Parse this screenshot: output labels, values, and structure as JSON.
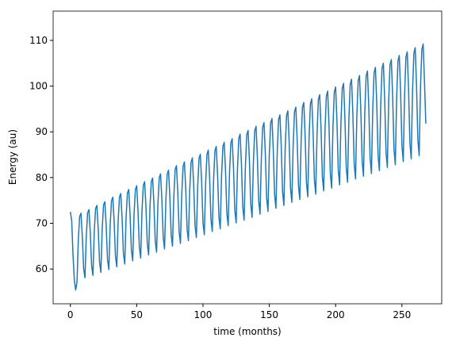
{
  "chart_data": {
    "type": "line",
    "x_label": "time (months)",
    "y_label": "Energy (au)",
    "xlim": [
      -13,
      280
    ],
    "ylim": [
      52.4,
      116.4
    ],
    "xticks": [
      0,
      50,
      100,
      150,
      200,
      250
    ],
    "yticks": [
      60,
      70,
      80,
      90,
      100,
      110
    ],
    "x": [
      0,
      1,
      2,
      3,
      4,
      5,
      6,
      7,
      8,
      9,
      10,
      11,
      12,
      13,
      14,
      15,
      16,
      17,
      18,
      19,
      20,
      21,
      22,
      23,
      24,
      25,
      26,
      27,
      28,
      29,
      30,
      31,
      32,
      33,
      34,
      35,
      36,
      37,
      38,
      39,
      40,
      41,
      42,
      43,
      44,
      45,
      46,
      47,
      48,
      49,
      50,
      51,
      52,
      53,
      54,
      55,
      56,
      57,
      58,
      59,
      60,
      61,
      62,
      63,
      64,
      65,
      66,
      67,
      68,
      69,
      70,
      71,
      72,
      73,
      74,
      75,
      76,
      77,
      78,
      79,
      80,
      81,
      82,
      83,
      84,
      85,
      86,
      87,
      88,
      89,
      90,
      91,
      92,
      93,
      94,
      95,
      96,
      97,
      98,
      99,
      100,
      101,
      102,
      103,
      104,
      105,
      106,
      107,
      108,
      109,
      110,
      111,
      112,
      113,
      114,
      115,
      116,
      117,
      118,
      119,
      120,
      121,
      122,
      123,
      124,
      125,
      126,
      127,
      128,
      129,
      130,
      131,
      132,
      133,
      134,
      135,
      136,
      137,
      138,
      139,
      140,
      141,
      142,
      143,
      144,
      145,
      146,
      147,
      148,
      149,
      150,
      151,
      152,
      153,
      154,
      155,
      156,
      157,
      158,
      159,
      160,
      161,
      162,
      163,
      164,
      165,
      166,
      167,
      168,
      169,
      170,
      171,
      172,
      173,
      174,
      175,
      176,
      177,
      178,
      179,
      180,
      181,
      182,
      183,
      184,
      185,
      186,
      187,
      188,
      189,
      190,
      191,
      192,
      193,
      194,
      195,
      196,
      197,
      198,
      199,
      200,
      201,
      202,
      203,
      204,
      205,
      206,
      207,
      208,
      209,
      210,
      211,
      212,
      213,
      214,
      215,
      216,
      217,
      218,
      219,
      220,
      221,
      222,
      223,
      224,
      225,
      226,
      227,
      228,
      229,
      230,
      231,
      232,
      233,
      234,
      235,
      236,
      237,
      238,
      239,
      240,
      241,
      242,
      243,
      244,
      245,
      246,
      247,
      248,
      249,
      250,
      251,
      252,
      253,
      254,
      255,
      256,
      257,
      258,
      259,
      260,
      261,
      262,
      263,
      264,
      265,
      266,
      267,
      268
    ],
    "series": [
      {
        "color": "#1f77b4",
        "values": [
          72.5,
          70.6,
          63.0,
          57.5,
          55.4,
          57.2,
          66.5,
          71.5,
          72.2,
          67.2,
          60.1,
          58.1,
          67.2,
          72.3,
          73.0,
          68.0,
          60.8,
          58.6,
          68.1,
          73.2,
          73.9,
          68.8,
          61.5,
          59.3,
          68.8,
          74.0,
          74.7,
          69.5,
          62.1,
          59.9,
          69.6,
          74.9,
          75.7,
          70.4,
          62.8,
          60.5,
          70.3,
          75.7,
          76.5,
          71.1,
          63.4,
          61.1,
          71.2,
          76.6,
          77.4,
          71.9,
          64.1,
          61.8,
          71.9,
          77.4,
          78.2,
          72.7,
          64.8,
          62.4,
          72.7,
          78.3,
          79.1,
          73.5,
          65.5,
          63.1,
          73.4,
          79.1,
          79.9,
          74.2,
          66.1,
          63.7,
          74.2,
          80.0,
          80.8,
          75.1,
          66.9,
          64.4,
          75.0,
          80.8,
          81.6,
          75.8,
          67.5,
          65.0,
          75.8,
          81.8,
          82.6,
          76.7,
          68.1,
          65.6,
          76.5,
          82.5,
          83.4,
          77.4,
          68.8,
          66.2,
          77.3,
          83.4,
          84.3,
          78.2,
          69.5,
          66.9,
          78.1,
          84.2,
          85.1,
          78.9,
          70.1,
          67.5,
          78.9,
          85.1,
          86.0,
          79.8,
          70.9,
          68.2,
          79.6,
          85.9,
          86.8,
          80.5,
          71.5,
          68.8,
          80.4,
          86.8,
          87.7,
          81.3,
          72.2,
          69.5,
          81.1,
          87.6,
          88.5,
          82.1,
          72.9,
          70.1,
          82.0,
          88.6,
          89.5,
          82.9,
          73.5,
          70.7,
          82.7,
          89.4,
          90.3,
          83.7,
          74.2,
          71.3,
          83.5,
          90.2,
          91.2,
          84.5,
          74.9,
          72.0,
          84.2,
          91.0,
          92.0,
          85.2,
          75.5,
          72.6,
          85.1,
          91.9,
          92.9,
          86.0,
          76.2,
          73.3,
          85.8,
          92.7,
          93.7,
          86.8,
          76.9,
          73.9,
          86.6,
          93.6,
          94.6,
          87.6,
          77.6,
          74.6,
          87.3,
          94.4,
          95.4,
          88.3,
          78.2,
          75.2,
          88.2,
          95.4,
          96.4,
          89.2,
          78.9,
          75.8,
          88.9,
          96.2,
          97.2,
          89.9,
          79.5,
          76.4,
          89.7,
          97.1,
          98.1,
          90.8,
          80.2,
          77.1,
          90.4,
          97.8,
          98.9,
          91.5,
          80.9,
          77.7,
          91.2,
          98.7,
          99.8,
          92.3,
          81.6,
          78.4,
          92.0,
          99.5,
          100.6,
          93.0,
          82.2,
          79.0,
          92.8,
          100.4,
          101.5,
          93.9,
          83.0,
          79.7,
          93.5,
          101.2,
          102.3,
          94.6,
          83.6,
          80.3,
          94.3,
          102.2,
          103.3,
          95.5,
          84.3,
          80.9,
          95.1,
          103.0,
          104.1,
          96.2,
          84.9,
          81.5,
          95.9,
          103.9,
          105.0,
          97.0,
          85.6,
          82.2,
          96.6,
          104.7,
          105.8,
          97.8,
          86.3,
          82.8,
          97.4,
          105.5,
          106.7,
          98.6,
          87.0,
          83.5,
          98.1,
          106.3,
          107.5,
          99.3,
          87.6,
          84.1,
          99.0,
          107.2,
          108.4,
          100.1,
          88.3,
          84.8,
          99.7,
          108.0,
          109.2,
          101.0,
          91.8
        ]
      }
    ]
  }
}
